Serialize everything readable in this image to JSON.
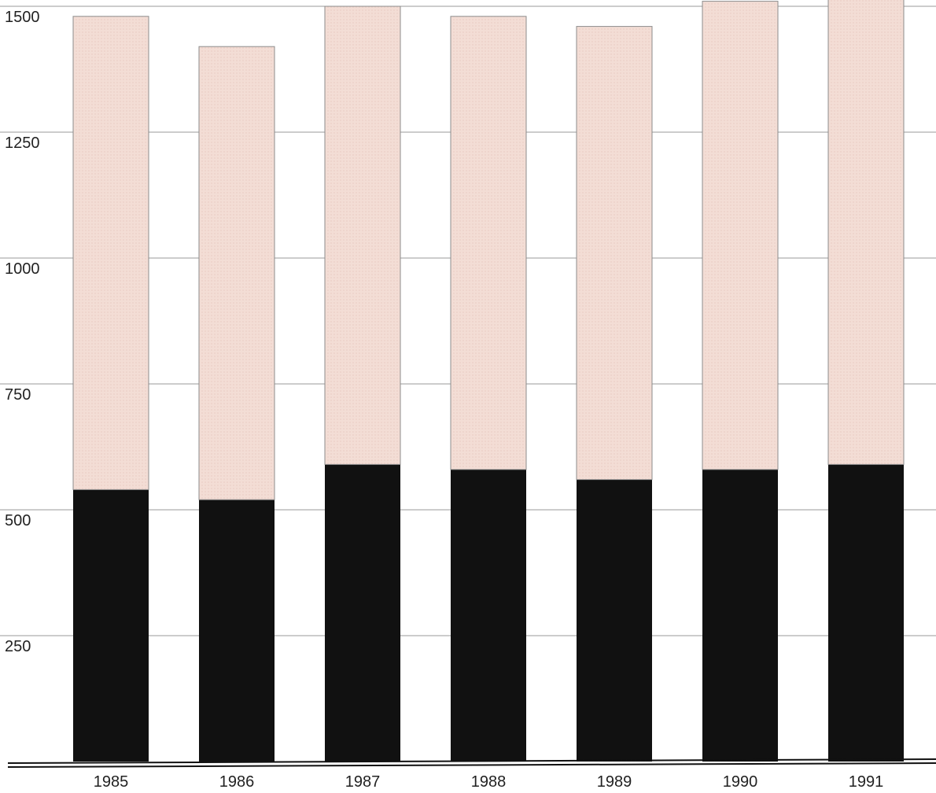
{
  "chart_data": {
    "type": "bar",
    "stacked": true,
    "categories": [
      "1985",
      "1986",
      "1987",
      "1988",
      "1989",
      "1990",
      "1991"
    ],
    "series": [
      {
        "values": [
          540,
          520,
          590,
          580,
          560,
          580,
          590
        ],
        "color": "#111111"
      },
      {
        "values": [
          940,
          900,
          910,
          900,
          900,
          930,
          940
        ],
        "color": "#f3ddd5"
      }
    ],
    "title": "",
    "xlabel": "",
    "ylabel": "",
    "ylim": [
      0,
      1500
    ],
    "yticks": [
      "250",
      "500",
      "750",
      "1000",
      "1250",
      "1500"
    ],
    "grid": true,
    "legend": "none"
  }
}
